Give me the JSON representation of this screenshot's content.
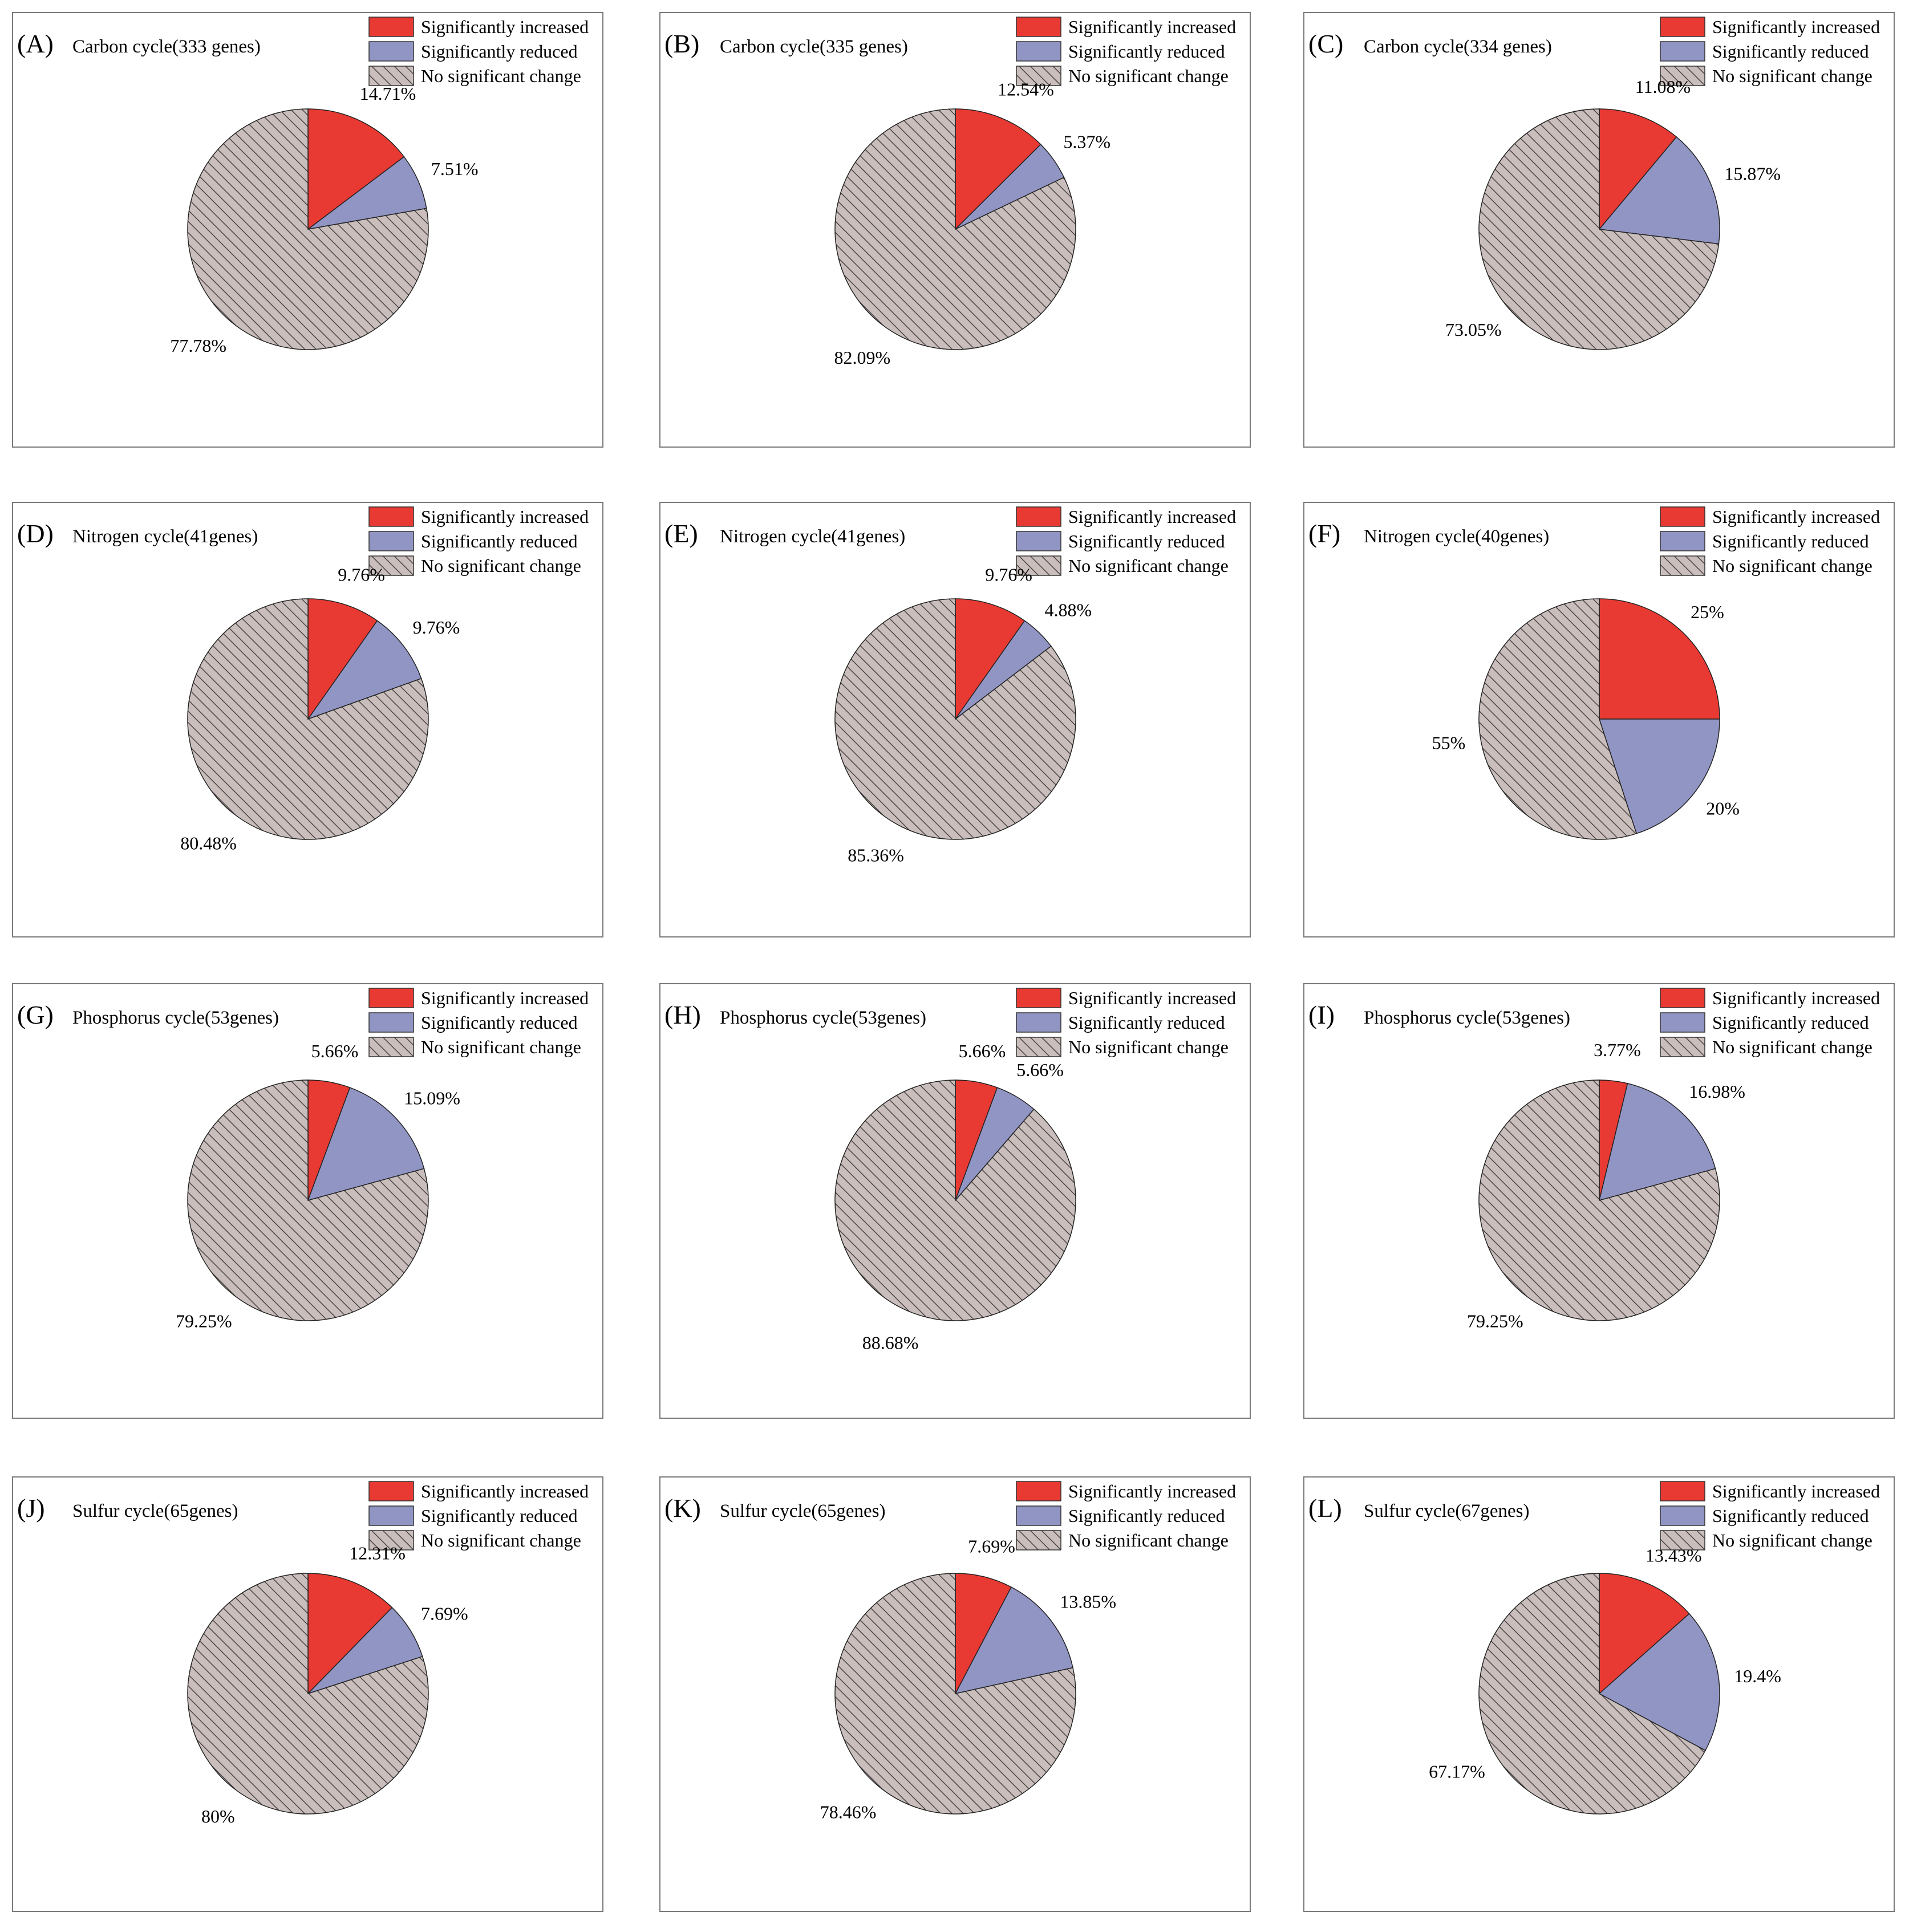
{
  "legend_labels": [
    "Significantly increased",
    "Significantly reduced",
    "No significant change"
  ],
  "colors": {
    "increased": "#e83a33",
    "reduced": "#9195c4",
    "no_change": "#c9bebb",
    "hatch_line": "#4a4444",
    "border": "#7a7a7a"
  },
  "chart_data": [
    {
      "type": "pie",
      "panel": "(A)",
      "title": "Carbon cycle(333 genes)",
      "slices": [
        {
          "label": "Significantly increased",
          "value": 14.71,
          "text": "14.71%"
        },
        {
          "label": "Significantly reduced",
          "value": 7.51,
          "text": "7.51%"
        },
        {
          "label": "No significant change",
          "value": 77.78,
          "text": "77.78%"
        }
      ]
    },
    {
      "type": "pie",
      "panel": "(B)",
      "title": "Carbon cycle(335 genes)",
      "slices": [
        {
          "label": "Significantly increased",
          "value": 12.54,
          "text": "12.54%"
        },
        {
          "label": "Significantly reduced",
          "value": 5.37,
          "text": "5.37%"
        },
        {
          "label": "No significant change",
          "value": 82.09,
          "text": "82.09%"
        }
      ]
    },
    {
      "type": "pie",
      "panel": "(C)",
      "title": "Carbon cycle(334 genes)",
      "slices": [
        {
          "label": "Significantly increased",
          "value": 11.08,
          "text": "11.08%"
        },
        {
          "label": "Significantly reduced",
          "value": 15.87,
          "text": "15.87%"
        },
        {
          "label": "No significant change",
          "value": 73.05,
          "text": "73.05%"
        }
      ]
    },
    {
      "type": "pie",
      "panel": "(D)",
      "title": "Nitrogen cycle(41genes)",
      "slices": [
        {
          "label": "Significantly increased",
          "value": 9.76,
          "text": "9.76%"
        },
        {
          "label": "Significantly reduced",
          "value": 9.76,
          "text": "9.76%"
        },
        {
          "label": "No significant change",
          "value": 80.48,
          "text": "80.48%"
        }
      ]
    },
    {
      "type": "pie",
      "panel": "(E)",
      "title": "Nitrogen cycle(41genes)",
      "slices": [
        {
          "label": "Significantly increased",
          "value": 9.76,
          "text": "9.76%"
        },
        {
          "label": "Significantly reduced",
          "value": 4.88,
          "text": "4.88%"
        },
        {
          "label": "No significant change",
          "value": 85.36,
          "text": "85.36%"
        }
      ]
    },
    {
      "type": "pie",
      "panel": "(F)",
      "title": "Nitrogen cycle(40genes)",
      "slices": [
        {
          "label": "Significantly increased",
          "value": 25,
          "text": "25%"
        },
        {
          "label": "Significantly reduced",
          "value": 20,
          "text": "20%"
        },
        {
          "label": "No significant change",
          "value": 55,
          "text": "55%"
        }
      ]
    },
    {
      "type": "pie",
      "panel": "(G)",
      "title": "Phosphorus cycle(53genes)",
      "slices": [
        {
          "label": "Significantly increased",
          "value": 5.66,
          "text": "5.66%"
        },
        {
          "label": "Significantly reduced",
          "value": 15.09,
          "text": "15.09%"
        },
        {
          "label": "No significant change",
          "value": 79.25,
          "text": "79.25%"
        }
      ]
    },
    {
      "type": "pie",
      "panel": "(H)",
      "title": "Phosphorus cycle(53genes)",
      "slices": [
        {
          "label": "Significantly increased",
          "value": 5.66,
          "text": "5.66%"
        },
        {
          "label": "Significantly reduced",
          "value": 5.66,
          "text": "5.66%"
        },
        {
          "label": "No significant change",
          "value": 88.68,
          "text": "88.68%"
        }
      ]
    },
    {
      "type": "pie",
      "panel": "(I)",
      "title": "Phosphorus cycle(53genes)",
      "slices": [
        {
          "label": "Significantly increased",
          "value": 3.77,
          "text": "3.77%"
        },
        {
          "label": "Significantly reduced",
          "value": 16.98,
          "text": "16.98%"
        },
        {
          "label": "No significant change",
          "value": 79.25,
          "text": "79.25%"
        }
      ]
    },
    {
      "type": "pie",
      "panel": "(J)",
      "title": "Sulfur cycle(65genes)",
      "slices": [
        {
          "label": "Significantly increased",
          "value": 12.31,
          "text": "12.31%"
        },
        {
          "label": "Significantly reduced",
          "value": 7.69,
          "text": "7.69%"
        },
        {
          "label": "No significant change",
          "value": 80,
          "text": "80%"
        }
      ]
    },
    {
      "type": "pie",
      "panel": "(K)",
      "title": "Sulfur cycle(65genes)",
      "slices": [
        {
          "label": "Significantly increased",
          "value": 7.69,
          "text": "7.69%"
        },
        {
          "label": "Significantly reduced",
          "value": 13.85,
          "text": "13.85%"
        },
        {
          "label": "No significant change",
          "value": 78.46,
          "text": "78.46%"
        }
      ]
    },
    {
      "type": "pie",
      "panel": "(L)",
      "title": "Sulfur cycle(67genes)",
      "slices": [
        {
          "label": "Significantly increased",
          "value": 13.43,
          "text": "13.43%"
        },
        {
          "label": "Significantly reduced",
          "value": 19.4,
          "text": "19.4%"
        },
        {
          "label": "No significant change",
          "value": 67.17,
          "text": "67.17%"
        }
      ]
    }
  ]
}
